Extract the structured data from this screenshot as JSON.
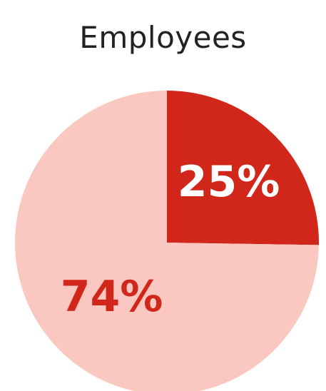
{
  "chart_data": {
    "type": "pie",
    "title": "Employees",
    "slices": [
      {
        "label": "25%",
        "value": 25,
        "color": "#d1271b",
        "text_color": "#ffffff"
      },
      {
        "label": "74%",
        "value": 74,
        "color": "#fac8c0",
        "text_color": "#d1271b"
      }
    ],
    "start": "12 o'clock",
    "direction": "clockwise"
  }
}
